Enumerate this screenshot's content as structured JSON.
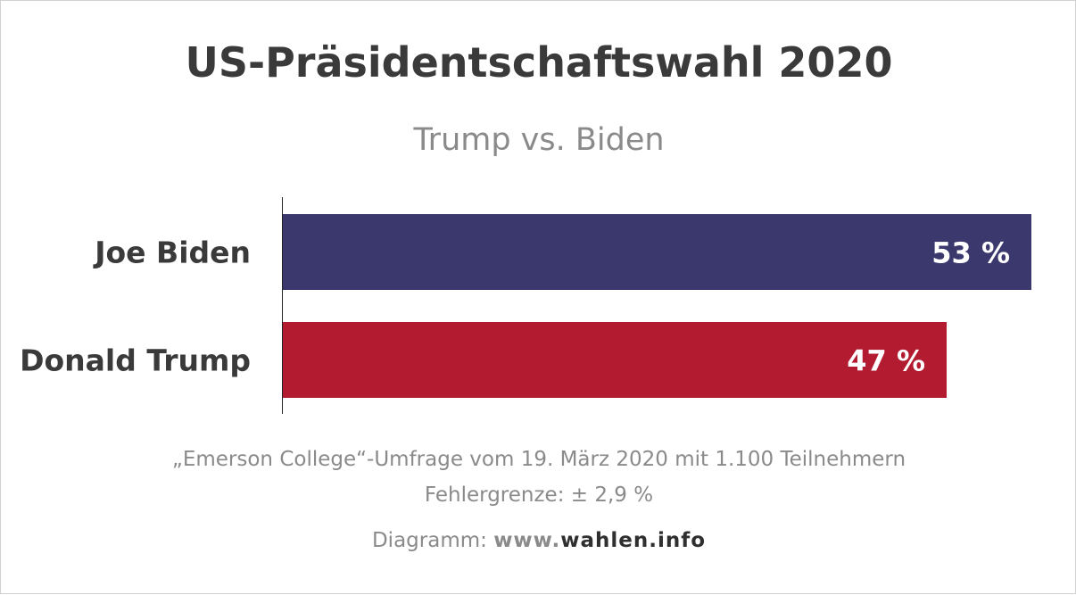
{
  "chart_data": {
    "type": "bar",
    "orientation": "horizontal",
    "title": "US-Präsidentschaftswahl 2020",
    "subtitle": "Trump vs. Biden",
    "categories": [
      "Joe Biden",
      "Donald Trump"
    ],
    "values": [
      53,
      47
    ],
    "value_labels": [
      "53 %",
      "47 %"
    ],
    "colors": [
      "#3b386d",
      "#b31b30"
    ],
    "grid": false,
    "legend": "none"
  },
  "notes": {
    "source": "„Emerson College“-Umfrage vom 19. März 2020 mit 1.100 Teilnehmern",
    "margin_of_error": "Fehlergrenze: ± 2,9 %"
  },
  "credit": {
    "prefix": "Diagramm: ",
    "www": "www.",
    "domain": "wahlen.info"
  }
}
